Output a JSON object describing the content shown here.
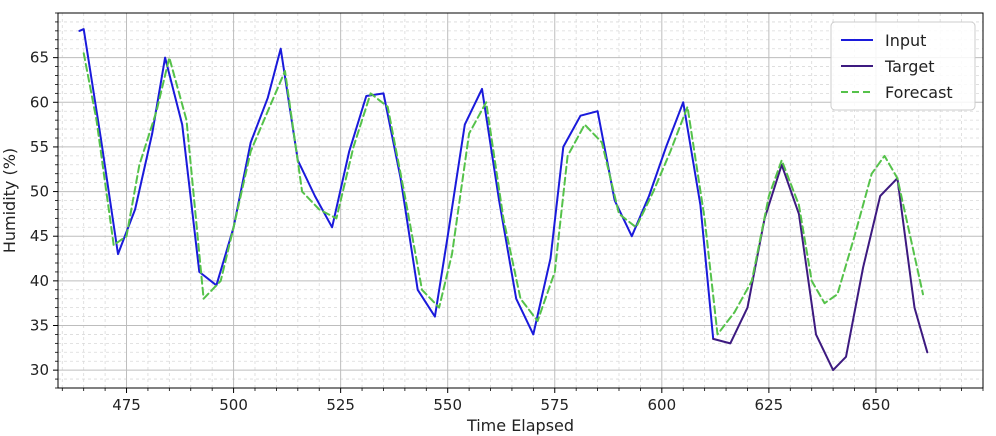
{
  "chart_data": {
    "type": "line",
    "title": "",
    "xlabel": "Time Elapsed",
    "ylabel": "Humidity (%)",
    "xlim": [
      459,
      675
    ],
    "ylim": [
      28,
      70
    ],
    "xticks": [
      475,
      500,
      525,
      550,
      575,
      600,
      625,
      650
    ],
    "yticks": [
      30,
      35,
      40,
      45,
      50,
      55,
      60,
      65
    ],
    "grid": true,
    "minor_grid": true,
    "legend_position": "top-right",
    "series": [
      {
        "name": "Input",
        "color": "#1a1adb",
        "dash": "solid",
        "x": [
          464,
          465,
          469,
          473,
          477,
          481,
          484,
          488,
          492,
          496,
          500,
          504,
          508,
          511,
          515,
          519,
          523,
          527,
          531,
          535,
          539,
          543,
          547,
          550,
          554,
          558,
          562,
          566,
          570,
          574,
          577,
          581,
          585,
          589,
          593,
          597,
          601,
          605,
          609,
          612
        ],
        "y": [
          68,
          68.2,
          56,
          43,
          48,
          56.5,
          65,
          57.5,
          41,
          39.5,
          46,
          55.5,
          60.5,
          66,
          53.5,
          49.5,
          46,
          54.5,
          60.7,
          61,
          51.5,
          39,
          36,
          45,
          57.5,
          61.5,
          49,
          38,
          34,
          42.5,
          55,
          58.5,
          59,
          49,
          45,
          49.5,
          55,
          60,
          48.5,
          33.5
        ]
      },
      {
        "name": "Target",
        "color": "#3d1a80",
        "dash": "solid",
        "x": [
          612,
          616,
          620,
          624,
          628,
          632,
          636,
          640,
          643,
          647,
          651,
          655,
          659,
          662
        ],
        "y": [
          33.5,
          33,
          37,
          47,
          53,
          47.5,
          34,
          30,
          31.5,
          41.5,
          49.5,
          51.5,
          37,
          32
        ]
      },
      {
        "name": "Forecast",
        "color": "#55c24a",
        "dash": "dashed",
        "x": [
          465,
          468,
          472,
          475,
          478,
          482,
          485,
          489,
          493,
          497,
          500,
          504,
          508,
          512,
          516,
          520,
          524,
          528,
          532,
          536,
          540,
          544,
          548,
          551,
          555,
          559,
          563,
          567,
          571,
          575,
          578,
          582,
          586,
          590,
          594,
          598,
          602,
          606,
          610,
          613,
          617,
          621,
          625,
          628,
          632,
          635,
          638,
          641,
          645,
          649,
          652,
          655,
          658,
          661
        ],
        "y": [
          65.5,
          58,
          44,
          45,
          53,
          59,
          65,
          58,
          38,
          40,
          46,
          54.5,
          59,
          63.5,
          50,
          48,
          47,
          55,
          61,
          59.5,
          49.5,
          39,
          37,
          43,
          56.5,
          60,
          47,
          38,
          35.5,
          41,
          54,
          57.5,
          55.5,
          47.5,
          46,
          50,
          54.5,
          59.5,
          47,
          34,
          36.5,
          40,
          49.5,
          53.5,
          48.5,
          40,
          37.5,
          38.5,
          45,
          52,
          54,
          51.5,
          45,
          38.5
        ]
      }
    ]
  }
}
